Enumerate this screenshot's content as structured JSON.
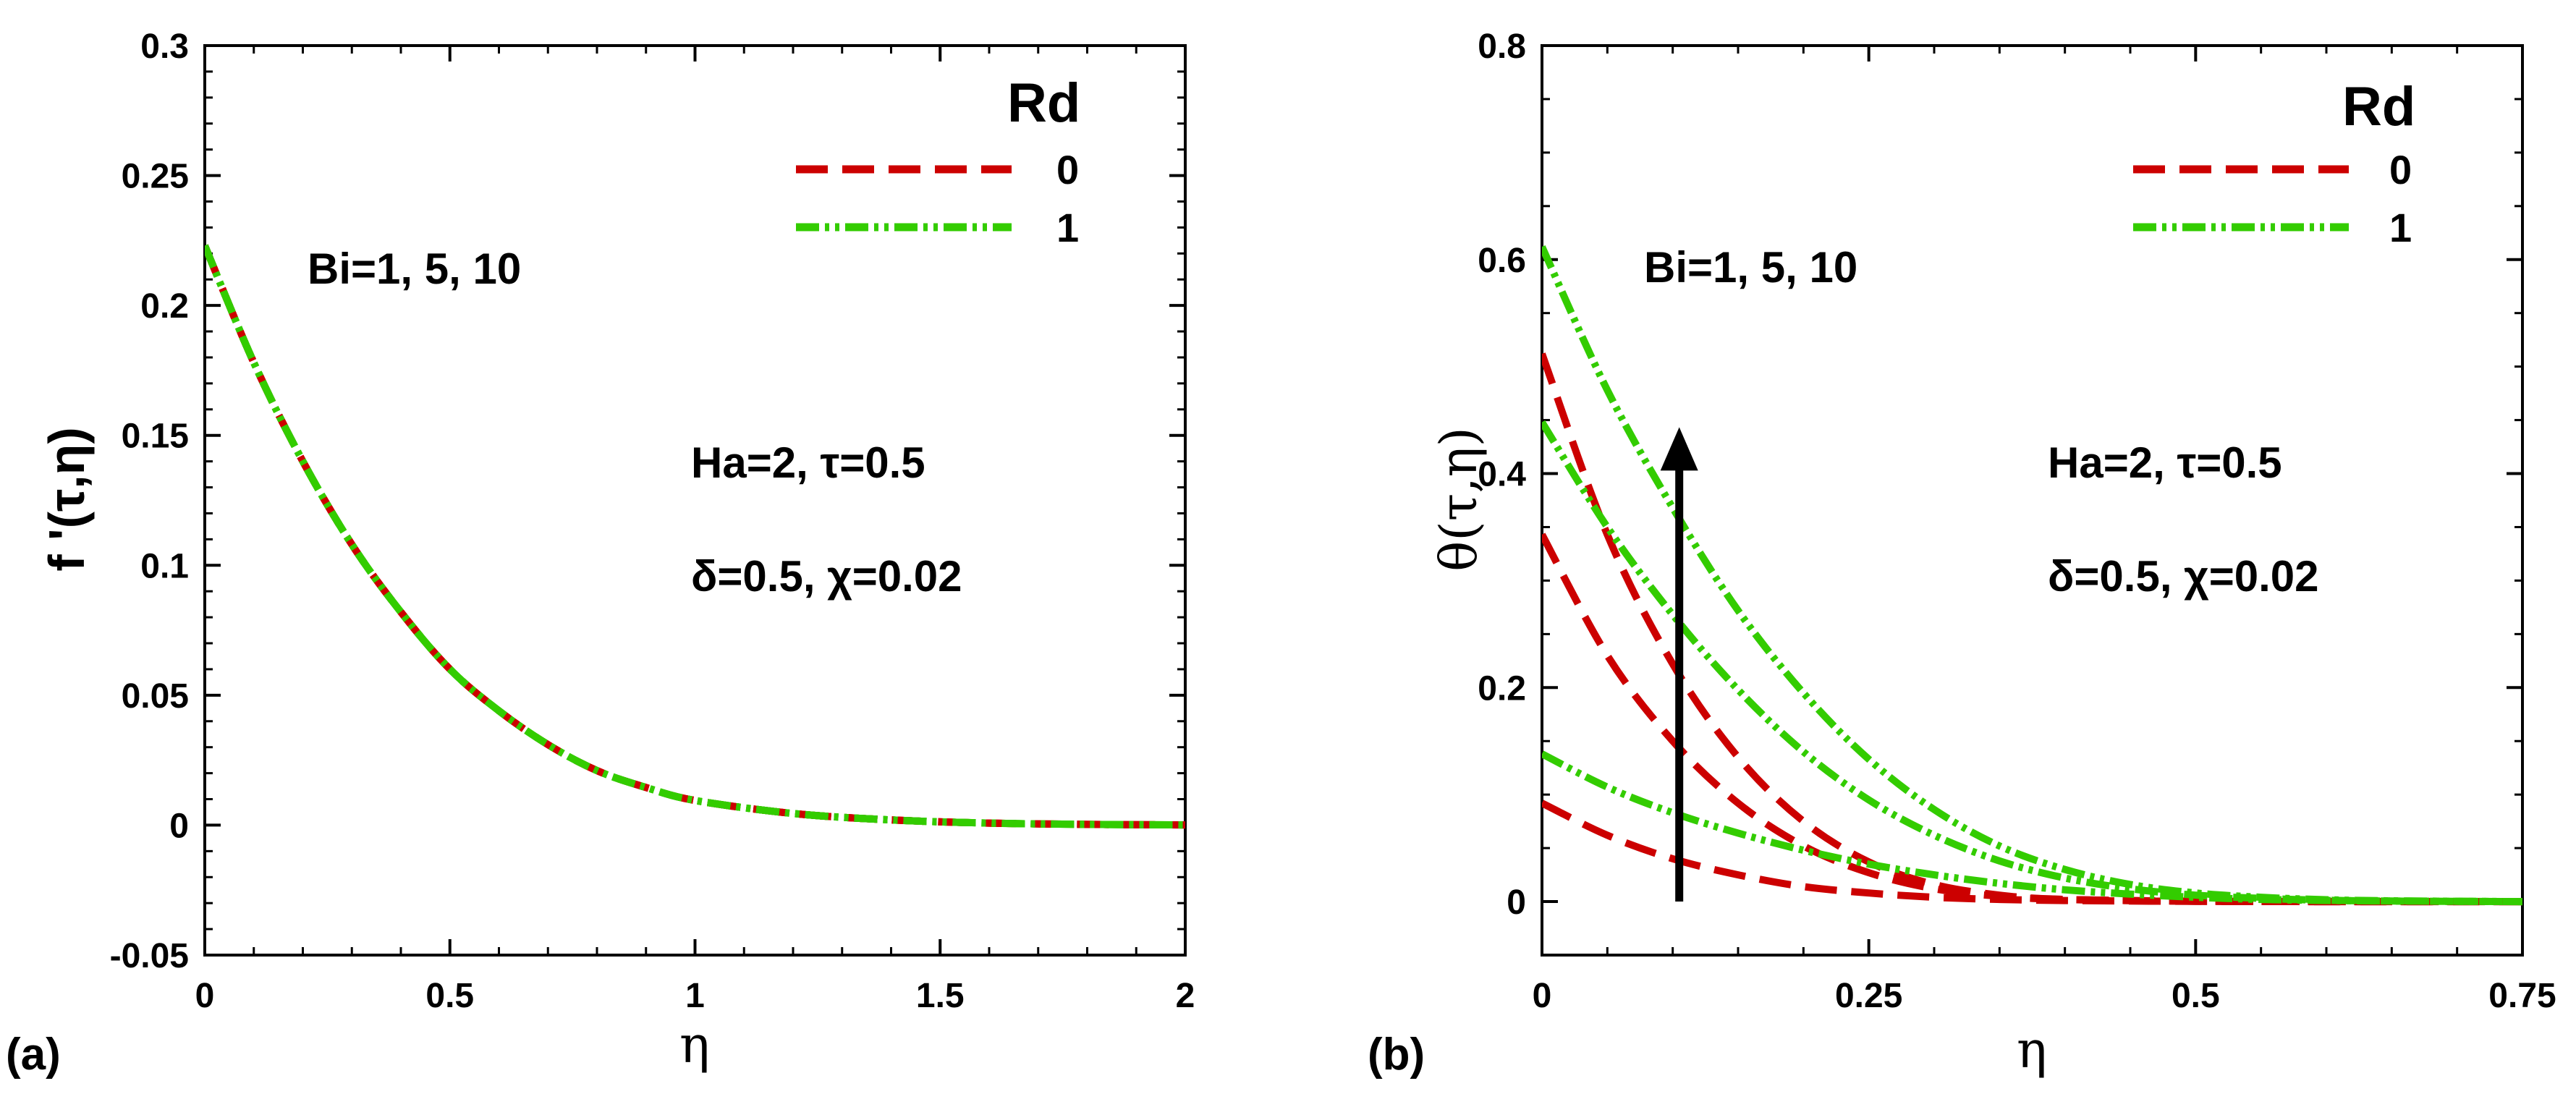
{
  "chart_data": [
    {
      "panel": "(a)",
      "type": "line",
      "xlabel": "η",
      "ylabel": "f '(τ,η)",
      "xlim": [
        0,
        2
      ],
      "ylim": [
        -0.05,
        0.3
      ],
      "xticks": [
        "0",
        "0.5",
        "1",
        "1.5",
        "2"
      ],
      "xtick_values": [
        0,
        0.5,
        1,
        1.5,
        2
      ],
      "yticks": [
        "-0.05",
        "0",
        "0.05",
        "0.1",
        "0.15",
        "0.2",
        "0.25",
        "0.3"
      ],
      "ytick_values": [
        -0.05,
        0,
        0.05,
        0.1,
        0.15,
        0.2,
        0.25,
        0.3
      ],
      "legend": {
        "title": "Rd",
        "position": "top-right",
        "entries": [
          "0",
          "1"
        ]
      },
      "annotations": [
        "Bi=1, 5, 10",
        "Ha=2, τ=0.5",
        "δ=0.5, χ=0.02"
      ],
      "series": [
        {
          "name": "Rd=0, Bi=1",
          "rd": "0",
          "color": "#cc0000",
          "style": "dashed",
          "x": [
            0,
            0.1,
            0.2,
            0.3,
            0.4,
            0.5,
            0.6,
            0.7,
            0.8,
            0.9,
            1.0,
            1.2,
            1.4,
            1.6,
            1.8,
            2.0
          ],
          "y": [
            0.223,
            0.178,
            0.14,
            0.108,
            0.082,
            0.06,
            0.044,
            0.031,
            0.021,
            0.0145,
            0.0095,
            0.0045,
            0.002,
            0.0008,
            0.0003,
            0.0001
          ]
        },
        {
          "name": "Rd=0, Bi=5",
          "rd": "0",
          "color": "#cc0000",
          "style": "dashed",
          "x": [
            0,
            0.1,
            0.2,
            0.3,
            0.4,
            0.5,
            0.6,
            0.7,
            0.8,
            0.9,
            1.0,
            1.2,
            1.4,
            1.6,
            1.8,
            2.0
          ],
          "y": [
            0.223,
            0.178,
            0.14,
            0.108,
            0.082,
            0.06,
            0.044,
            0.031,
            0.021,
            0.0145,
            0.0095,
            0.0045,
            0.002,
            0.0008,
            0.0003,
            0.0001
          ]
        },
        {
          "name": "Rd=0, Bi=10",
          "rd": "0",
          "color": "#cc0000",
          "style": "dashed",
          "x": [
            0,
            0.1,
            0.2,
            0.3,
            0.4,
            0.5,
            0.6,
            0.7,
            0.8,
            0.9,
            1.0,
            1.2,
            1.4,
            1.6,
            1.8,
            2.0
          ],
          "y": [
            0.223,
            0.178,
            0.14,
            0.108,
            0.082,
            0.06,
            0.044,
            0.031,
            0.021,
            0.0145,
            0.0095,
            0.0045,
            0.002,
            0.0008,
            0.0003,
            0.0001
          ]
        },
        {
          "name": "Rd=1, Bi=1",
          "rd": "1",
          "color": "#33cc00",
          "style": "dashdot",
          "x": [
            0,
            0.1,
            0.2,
            0.3,
            0.4,
            0.5,
            0.6,
            0.7,
            0.8,
            0.9,
            1.0,
            1.2,
            1.4,
            1.6,
            1.8,
            2.0
          ],
          "y": [
            0.223,
            0.178,
            0.14,
            0.108,
            0.082,
            0.06,
            0.044,
            0.031,
            0.021,
            0.0145,
            0.0095,
            0.0045,
            0.002,
            0.0008,
            0.0003,
            0.0001
          ]
        },
        {
          "name": "Rd=1, Bi=5",
          "rd": "1",
          "color": "#33cc00",
          "style": "dashdot",
          "x": [
            0,
            0.1,
            0.2,
            0.3,
            0.4,
            0.5,
            0.6,
            0.7,
            0.8,
            0.9,
            1.0,
            1.2,
            1.4,
            1.6,
            1.8,
            2.0
          ],
          "y": [
            0.223,
            0.178,
            0.14,
            0.108,
            0.082,
            0.06,
            0.044,
            0.031,
            0.021,
            0.0145,
            0.0095,
            0.0045,
            0.002,
            0.0008,
            0.0003,
            0.0001
          ]
        },
        {
          "name": "Rd=1, Bi=10",
          "rd": "1",
          "color": "#33cc00",
          "style": "dashdot",
          "x": [
            0,
            0.1,
            0.2,
            0.3,
            0.4,
            0.5,
            0.6,
            0.7,
            0.8,
            0.9,
            1.0,
            1.2,
            1.4,
            1.6,
            1.8,
            2.0
          ],
          "y": [
            0.223,
            0.178,
            0.14,
            0.108,
            0.082,
            0.06,
            0.044,
            0.031,
            0.021,
            0.0145,
            0.0095,
            0.0045,
            0.002,
            0.0008,
            0.0003,
            0.0001
          ]
        }
      ]
    },
    {
      "panel": "(b)",
      "type": "line",
      "xlabel": "η",
      "ylabel": "θ(τ,η)",
      "xlim": [
        0,
        0.75
      ],
      "ylim": [
        -0.05,
        0.8
      ],
      "xticks": [
        "0",
        "0.25",
        "0.5",
        "0.75"
      ],
      "xtick_values": [
        0,
        0.25,
        0.5,
        0.75
      ],
      "yticks": [
        "0",
        "0.2",
        "0.4",
        "0.6",
        "0.8"
      ],
      "ytick_values": [
        0,
        0.2,
        0.4,
        0.6,
        0.8
      ],
      "legend": {
        "title": "Rd",
        "position": "top-right",
        "entries": [
          "0",
          "1"
        ]
      },
      "annotations": [
        "Bi=1, 5, 10",
        "Ha=2, τ=0.5",
        "δ=0.5, χ=0.02"
      ],
      "arrow": {
        "direction": "up",
        "x": 0.105,
        "y_from": 0.0,
        "y_to": 0.44,
        "label": "Bi=1, 5, 10"
      },
      "series": [
        {
          "name": "Rd=0, Bi=1",
          "rd": "0",
          "color": "#cc0000",
          "style": "dashed",
          "x": [
            0,
            0.05,
            0.1,
            0.15,
            0.2,
            0.25,
            0.3,
            0.35,
            0.4,
            0.5,
            0.6,
            0.75
          ],
          "y": [
            0.092,
            0.062,
            0.04,
            0.025,
            0.014,
            0.008,
            0.004,
            0.002,
            0.001,
            0.0002,
            0.0,
            0.0
          ]
        },
        {
          "name": "Rd=0, Bi=5",
          "rd": "0",
          "color": "#cc0000",
          "style": "dashed",
          "x": [
            0,
            0.05,
            0.1,
            0.15,
            0.2,
            0.25,
            0.3,
            0.35,
            0.4,
            0.5,
            0.6,
            0.75
          ],
          "y": [
            0.343,
            0.23,
            0.15,
            0.092,
            0.052,
            0.027,
            0.012,
            0.005,
            0.002,
            0.0003,
            0.0,
            0.0
          ]
        },
        {
          "name": "Rd=0, Bi=10",
          "rd": "0",
          "color": "#cc0000",
          "style": "dashed",
          "x": [
            0,
            0.05,
            0.1,
            0.15,
            0.2,
            0.25,
            0.3,
            0.35,
            0.4,
            0.5,
            0.6,
            0.75
          ],
          "y": [
            0.512,
            0.343,
            0.222,
            0.135,
            0.075,
            0.037,
            0.016,
            0.006,
            0.002,
            0.0003,
            0.0,
            0.0
          ]
        },
        {
          "name": "Rd=1, Bi=1",
          "rd": "1",
          "color": "#33cc00",
          "style": "dashdot",
          "x": [
            0,
            0.05,
            0.1,
            0.15,
            0.2,
            0.25,
            0.3,
            0.35,
            0.4,
            0.45,
            0.5,
            0.55,
            0.6,
            0.65,
            0.7,
            0.75
          ],
          "y": [
            0.138,
            0.107,
            0.083,
            0.064,
            0.048,
            0.035,
            0.025,
            0.017,
            0.011,
            0.007,
            0.004,
            0.002,
            0.001,
            0.0005,
            0.0002,
            0.0
          ]
        },
        {
          "name": "Rd=1, Bi=5",
          "rd": "1",
          "color": "#33cc00",
          "style": "dashdot",
          "x": [
            0,
            0.05,
            0.1,
            0.15,
            0.2,
            0.25,
            0.3,
            0.35,
            0.4,
            0.45,
            0.5,
            0.55,
            0.6,
            0.65,
            0.7,
            0.75
          ],
          "y": [
            0.448,
            0.35,
            0.268,
            0.198,
            0.14,
            0.095,
            0.062,
            0.038,
            0.022,
            0.012,
            0.006,
            0.003,
            0.0012,
            0.0005,
            0.0002,
            0.0
          ]
        },
        {
          "name": "Rd=1, Bi=10",
          "rd": "1",
          "color": "#33cc00",
          "style": "dashdot",
          "x": [
            0,
            0.05,
            0.1,
            0.15,
            0.2,
            0.25,
            0.3,
            0.35,
            0.4,
            0.45,
            0.5,
            0.55,
            0.6,
            0.65,
            0.7,
            0.75
          ],
          "y": [
            0.612,
            0.478,
            0.368,
            0.272,
            0.195,
            0.133,
            0.086,
            0.052,
            0.03,
            0.016,
            0.008,
            0.004,
            0.0017,
            0.0007,
            0.0003,
            0.0
          ]
        }
      ]
    }
  ]
}
